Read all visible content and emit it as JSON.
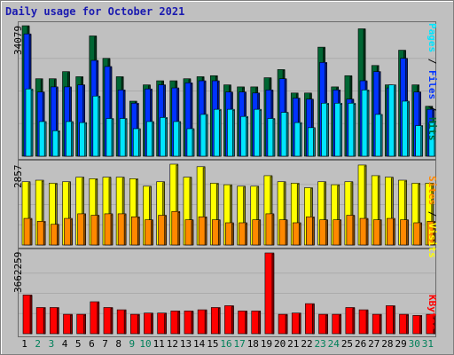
{
  "title": "Daily usage for October 2021",
  "colors": {
    "hits": "#006633",
    "files": "#0033ff",
    "pages": "#00e5ff",
    "visits": "#ffff00",
    "sites": "#ff8800",
    "kbytes": "#ff0000",
    "weekday_label": "#000000",
    "weekend_label": "#00805a"
  },
  "legend": {
    "top": {
      "pages": "Pages",
      "sep1": " / ",
      "files": "Files",
      "sep2": " / ",
      "hits": "Hits"
    },
    "middle": {
      "sites": "Sites",
      "sep": " / ",
      "visits": "Visits"
    },
    "bottom": {
      "kbytes": "KBytes"
    }
  },
  "chart_data": [
    {
      "type": "bar",
      "title": "Daily usage for October 2021",
      "max_label": "34079",
      "ylim": [
        0,
        34079
      ],
      "categories": [
        "1",
        "2",
        "3",
        "4",
        "5",
        "6",
        "7",
        "8",
        "9",
        "10",
        "11",
        "12",
        "13",
        "14",
        "15",
        "16",
        "17",
        "18",
        "19",
        "20",
        "21",
        "22",
        "23",
        "24",
        "25",
        "26",
        "27",
        "28",
        "29",
        "30",
        "31"
      ],
      "weekend_days": [
        "2",
        "3",
        "9",
        "10",
        "16",
        "17",
        "23",
        "24",
        "30",
        "31"
      ],
      "series": [
        {
          "name": "Hits",
          "values": [
            34079,
            20235,
            20235,
            22099,
            20768,
            31416,
            25558,
            20768,
            14377,
            18637,
            19701,
            19701,
            20235,
            20768,
            21034,
            18637,
            18105,
            18105,
            20502,
            22631,
            16506,
            16506,
            28487,
            18105,
            21034,
            33281,
            23696,
            18637,
            27689,
            18637,
            13046
          ]
        },
        {
          "name": "Files",
          "values": [
            31949,
            16772,
            18105,
            18105,
            18637,
            25025,
            23429,
            17304,
            13846,
            17571,
            18637,
            17837,
            19170,
            19701,
            19701,
            16772,
            16772,
            16506,
            17304,
            20235,
            15174,
            14908,
            24493,
            17304,
            14908,
            19701,
            22099,
            17837,
            25558,
            16772,
            12248
          ]
        },
        {
          "name": "Pages",
          "values": [
            17571,
            9050,
            6655,
            9050,
            8785,
            15707,
            9850,
            9850,
            7188,
            9050,
            10115,
            9050,
            7188,
            10914,
            12248,
            12248,
            10382,
            12248,
            9850,
            11449,
            8785,
            7454,
            13846,
            13846,
            13846,
            17304,
            10914,
            18637,
            14377,
            7988,
            8785
          ]
        }
      ]
    },
    {
      "type": "bar",
      "max_label": "2857",
      "ylim": [
        0,
        2857
      ],
      "categories": [
        "1",
        "2",
        "3",
        "4",
        "5",
        "6",
        "7",
        "8",
        "9",
        "10",
        "11",
        "12",
        "13",
        "14",
        "15",
        "16",
        "17",
        "18",
        "19",
        "20",
        "21",
        "22",
        "23",
        "24",
        "25",
        "26",
        "27",
        "28",
        "29",
        "30",
        "31"
      ],
      "series": [
        {
          "name": "Visits",
          "values": [
            2237,
            2291,
            2184,
            2237,
            2397,
            2345,
            2397,
            2397,
            2345,
            2078,
            2237,
            2857,
            2398,
            2769,
            2184,
            2131,
            2078,
            2078,
            2451,
            2237,
            2184,
            2025,
            2237,
            2131,
            2237,
            2827,
            2451,
            2397,
            2291,
            2184,
            2184
          ]
        },
        {
          "name": "Sites",
          "values": [
            940,
            835,
            730,
            940,
            1102,
            1050,
            1102,
            1102,
            995,
            890,
            1050,
            1185,
            890,
            995,
            890,
            785,
            785,
            890,
            1102,
            890,
            785,
            995,
            890,
            890,
            1050,
            940,
            890,
            940,
            890,
            785,
            835
          ]
        }
      ]
    },
    {
      "type": "bar",
      "max_label": "3662259",
      "ylim": [
        0,
        3662259
      ],
      "categories": [
        "1",
        "2",
        "3",
        "4",
        "5",
        "6",
        "7",
        "8",
        "9",
        "10",
        "11",
        "12",
        "13",
        "14",
        "15",
        "16",
        "17",
        "18",
        "19",
        "20",
        "21",
        "22",
        "23",
        "24",
        "25",
        "26",
        "27",
        "28",
        "29",
        "30",
        "31"
      ],
      "series": [
        {
          "name": "KBytes",
          "values": [
            1755000,
            1188000,
            1188000,
            882000,
            882000,
            1449000,
            1188000,
            1084000,
            882000,
            936000,
            936000,
            1030000,
            1030000,
            1084000,
            1188000,
            1270000,
            1030000,
            1030000,
            3662259,
            882000,
            936000,
            1363000,
            882000,
            882000,
            1188000,
            1084000,
            882000,
            1270000,
            882000,
            829000,
            882000
          ]
        }
      ]
    }
  ]
}
